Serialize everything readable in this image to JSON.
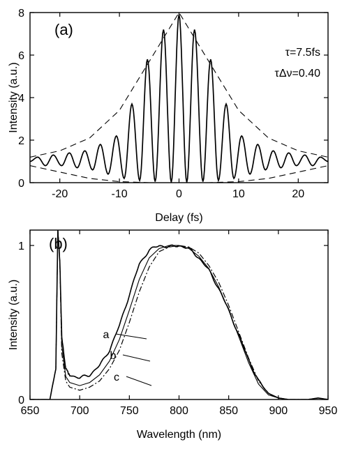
{
  "chart_data": [
    {
      "type": "line",
      "panel_label": "(a)",
      "xlabel": "Delay (fs)",
      "ylabel": "Intensity (a.u.)",
      "xlim": [
        -25,
        25
      ],
      "ylim": [
        0,
        8
      ],
      "xticks": [
        -20,
        -10,
        0,
        10,
        20
      ],
      "yticks": [
        0,
        2,
        4,
        6,
        8
      ],
      "annotations": [
        "τ=7.5fs",
        "τΔν=0.40"
      ],
      "series": [
        {
          "style": "solid",
          "x": [
            -25.0,
            -23.7,
            -22.4,
            -21.1,
            -19.7,
            -18.4,
            -17.1,
            -15.8,
            -14.5,
            -13.2,
            -11.9,
            -10.5,
            -9.2,
            -7.9,
            -6.6,
            -5.3,
            -4.0,
            -2.6,
            -1.3,
            0.0,
            1.3,
            2.6,
            4.0,
            5.3,
            6.6,
            7.9,
            9.2,
            10.5,
            11.9,
            13.2,
            14.5,
            15.8,
            17.1,
            18.4,
            19.7,
            21.1,
            22.4,
            23.7,
            25.0
          ],
          "y": [
            1.0,
            1.2,
            0.8,
            1.3,
            0.8,
            1.4,
            0.7,
            1.5,
            0.6,
            1.8,
            0.4,
            2.2,
            0.2,
            3.7,
            0.1,
            5.8,
            0.05,
            7.2,
            0.02,
            7.9,
            0.02,
            7.2,
            0.05,
            5.8,
            0.1,
            3.7,
            0.2,
            2.2,
            0.4,
            1.8,
            0.6,
            1.5,
            0.7,
            1.4,
            0.8,
            1.3,
            0.8,
            1.2,
            1.0
          ]
        },
        {
          "style": "dashed-envelope-upper",
          "x": [
            -25,
            -20,
            -15,
            -10,
            -5,
            0,
            5,
            10,
            15,
            20,
            25
          ],
          "y": [
            1.2,
            1.5,
            2.1,
            3.4,
            5.7,
            8.0,
            5.7,
            3.4,
            2.1,
            1.5,
            1.2
          ]
        },
        {
          "style": "dashed-envelope-lower",
          "x": [
            -25,
            -20,
            -15,
            -10,
            -5,
            0,
            5,
            10,
            15,
            20,
            25
          ],
          "y": [
            0.8,
            0.5,
            0.2,
            0.05,
            0.0,
            0.0,
            0.0,
            0.05,
            0.2,
            0.5,
            0.8
          ]
        }
      ]
    },
    {
      "type": "line",
      "panel_label": "(b)",
      "xlabel": "Wavelength (nm)",
      "ylabel": "Intensity (a.u.)",
      "xlim": [
        650,
        950
      ],
      "ylim": [
        0,
        1.1
      ],
      "xticks": [
        650,
        700,
        750,
        800,
        850,
        900,
        950
      ],
      "yticks": [
        0,
        1
      ],
      "curve_labels": [
        "a",
        "b",
        "c"
      ],
      "series": [
        {
          "name": "a",
          "style": "solid-noisy",
          "x": [
            650,
            670,
            676,
            678,
            680,
            682,
            686,
            690,
            700,
            710,
            720,
            730,
            740,
            750,
            760,
            770,
            780,
            790,
            800,
            810,
            820,
            830,
            840,
            850,
            860,
            870,
            880,
            890,
            900,
            910,
            920,
            930,
            940,
            950
          ],
          "y": [
            0.0,
            0.0,
            0.2,
            1.1,
            0.9,
            0.4,
            0.2,
            0.16,
            0.14,
            0.16,
            0.22,
            0.32,
            0.48,
            0.68,
            0.88,
            0.97,
            1.0,
            0.99,
            1.0,
            0.98,
            0.92,
            0.84,
            0.72,
            0.58,
            0.42,
            0.26,
            0.12,
            0.04,
            0.01,
            0.0,
            0.0,
            0.0,
            0.01,
            0.0
          ]
        },
        {
          "name": "b",
          "style": "solid",
          "x": [
            650,
            670,
            676,
            678,
            680,
            682,
            686,
            690,
            700,
            710,
            720,
            730,
            740,
            750,
            760,
            770,
            780,
            790,
            800,
            810,
            820,
            830,
            840,
            850,
            860,
            870,
            880,
            890,
            900,
            910,
            920,
            930,
            940,
            950
          ],
          "y": [
            0.0,
            0.0,
            0.2,
            1.1,
            0.9,
            0.35,
            0.15,
            0.11,
            0.09,
            0.11,
            0.16,
            0.25,
            0.39,
            0.58,
            0.78,
            0.92,
            0.98,
            1.0,
            1.0,
            0.98,
            0.93,
            0.85,
            0.73,
            0.58,
            0.41,
            0.24,
            0.1,
            0.03,
            0.01,
            0.0,
            0.0,
            0.0,
            0.0,
            0.0
          ]
        },
        {
          "name": "c",
          "style": "dash-dot",
          "x": [
            650,
            670,
            676,
            678,
            680,
            682,
            686,
            690,
            700,
            710,
            720,
            730,
            740,
            750,
            760,
            770,
            780,
            790,
            800,
            810,
            820,
            830,
            840,
            850,
            860,
            870,
            880,
            890,
            900,
            910,
            920,
            930,
            940,
            950
          ],
          "y": [
            0.0,
            0.0,
            0.2,
            1.1,
            0.9,
            0.3,
            0.12,
            0.08,
            0.06,
            0.08,
            0.12,
            0.2,
            0.32,
            0.5,
            0.7,
            0.86,
            0.96,
            0.99,
            1.0,
            0.99,
            0.95,
            0.87,
            0.76,
            0.61,
            0.44,
            0.27,
            0.12,
            0.04,
            0.01,
            0.0,
            0.0,
            0.0,
            0.0,
            0.0
          ]
        }
      ]
    }
  ]
}
